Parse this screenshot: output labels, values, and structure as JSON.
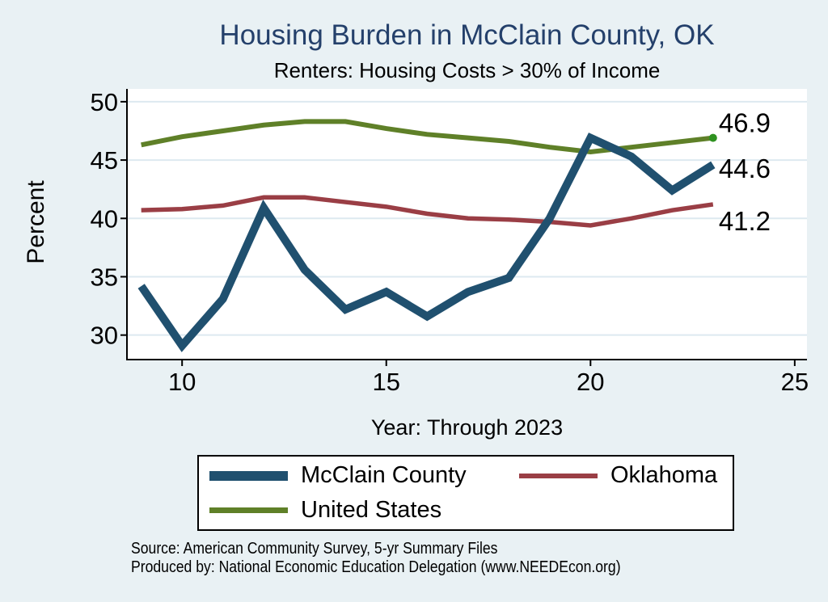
{
  "title": "Housing Burden in McClain County, OK",
  "subtitle": "Renters: Housing Costs > 30% of Income",
  "x_axis_label": "Year: Through 2023",
  "y_axis_label": "Percent",
  "footer": {
    "source_line": "Source: American Community Survey, 5-yr Summary Files",
    "produced_line": "Produced by: National Economic Education Delegation (www.NEEDEcon.org)"
  },
  "colors": {
    "background": "#e9f1f4",
    "plot_background": "#ffffff",
    "grid": "#dde9f0",
    "axis": "#000000",
    "title_text": "#24406b",
    "end_dot": "#2f9220"
  },
  "chart_data": {
    "type": "line",
    "title": "Housing Burden in McClain County, OK",
    "subtitle": "Renters: Housing Costs > 30% of Income",
    "xlabel": "Year: Through 2023",
    "ylabel": "Percent",
    "grid": "horizontal only",
    "legend_position": "bottom",
    "x_note": "x = year (2009–2023 shown as 09–23)",
    "x": [
      9,
      10,
      11,
      12,
      13,
      14,
      15,
      16,
      17,
      18,
      19,
      20,
      21,
      22,
      23
    ],
    "years": [
      2009,
      2010,
      2011,
      2012,
      2013,
      2014,
      2015,
      2016,
      2017,
      2018,
      2019,
      2020,
      2021,
      2022,
      2023
    ],
    "x_tick_values": [
      10,
      15,
      20,
      25
    ],
    "x_tick_labels": [
      "10",
      "15",
      "20",
      "25"
    ],
    "y_tick_values": [
      30,
      35,
      40,
      45,
      50
    ],
    "y_tick_labels": [
      "30",
      "35",
      "40",
      "45",
      "50"
    ],
    "xlim": [
      8.65,
      25.3
    ],
    "ylim": [
      27.9,
      51.1
    ],
    "series": [
      {
        "name": "McClain County",
        "color": "#20506f",
        "values": [
          34.2,
          29.1,
          33.1,
          40.9,
          35.6,
          32.2,
          33.7,
          31.6,
          33.7,
          34.9,
          40.0,
          46.9,
          45.3,
          42.4,
          44.6
        ],
        "end_label": "44.6"
      },
      {
        "name": "Oklahoma",
        "color": "#9a3e45",
        "values": [
          40.7,
          40.8,
          41.1,
          41.8,
          41.8,
          41.4,
          41.0,
          40.4,
          40.0,
          39.9,
          39.7,
          39.4,
          40.0,
          40.7,
          41.2
        ],
        "end_label": "41.2"
      },
      {
        "name": "United States",
        "color": "#5f8028",
        "values": [
          46.3,
          47.0,
          47.5,
          48.0,
          48.3,
          48.3,
          47.7,
          47.2,
          46.9,
          46.6,
          46.1,
          45.7,
          46.1,
          46.5,
          46.9
        ],
        "end_label": "46.9",
        "end_dot": true
      }
    ]
  }
}
